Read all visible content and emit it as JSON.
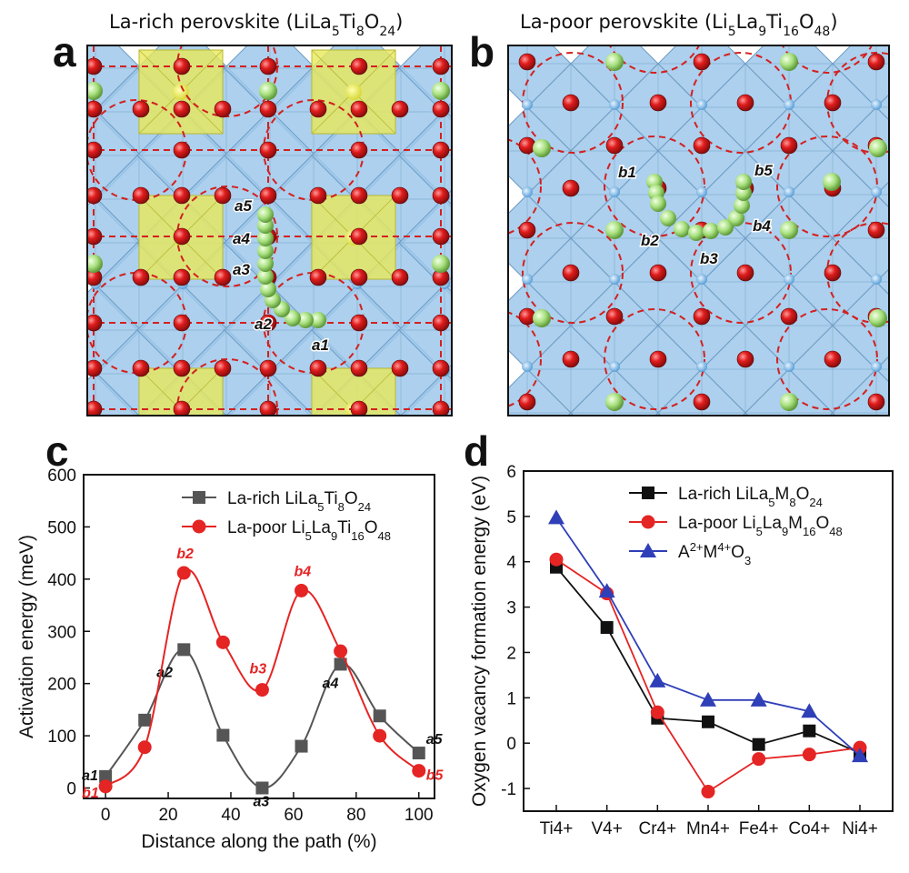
{
  "figure": {
    "panel_a": {
      "letter": "a",
      "title": "La-rich perovskite (LiLa",
      "formula": [
        {
          "t": "La-rich perovskite (LiLa",
          "sub": false
        },
        {
          "t": "5",
          "sub": true
        },
        {
          "t": "Ti",
          "sub": false
        },
        {
          "t": "8",
          "sub": true
        },
        {
          "t": "O",
          "sub": false
        },
        {
          "t": "24",
          "sub": true
        },
        {
          "t": ")",
          "sub": false
        }
      ],
      "site_labels": [
        "a1",
        "a2",
        "a3",
        "a4",
        "a5"
      ]
    },
    "panel_b": {
      "letter": "b",
      "formula": [
        {
          "t": "La-poor perovskite (Li",
          "sub": false
        },
        {
          "t": "5",
          "sub": true
        },
        {
          "t": "La",
          "sub": false
        },
        {
          "t": "9",
          "sub": true
        },
        {
          "t": "Ti",
          "sub": false
        },
        {
          "t": "16",
          "sub": true
        },
        {
          "t": "O",
          "sub": false
        },
        {
          "t": "48",
          "sub": true
        },
        {
          "t": ")",
          "sub": false
        }
      ],
      "site_labels": [
        "b1",
        "b2",
        "b3",
        "b4",
        "b5"
      ]
    },
    "panel_c": {
      "letter": "c"
    },
    "panel_d": {
      "letter": "d"
    },
    "colors": {
      "octahedron": "#9ec8ea",
      "octahedron_edge": "#6f9cc4",
      "yellow_cage": "#e8e85a",
      "oxygen": "#e01c1c",
      "lithium": "#a8e07e",
      "dashed": "#d42020",
      "black_series": "#111111",
      "red_series": "#e52424",
      "blue_series": "#2f3fb8"
    }
  },
  "chart_data": [
    {
      "type": "line",
      "panel": "c",
      "xlabel": "Distance along the path (%)",
      "ylabel": "Activation energy (meV)",
      "xlim": [
        -7,
        105
      ],
      "ylim": [
        -20,
        600
      ],
      "xticks": [
        0,
        20,
        40,
        60,
        80,
        100
      ],
      "yticks": [
        0,
        100,
        200,
        300,
        400,
        500,
        600
      ],
      "legend_position": "top-right",
      "series": [
        {
          "name": "La-rich LiLa5Ti8O24",
          "legend": [
            {
              "t": "La-rich LiLa",
              "sub": false
            },
            {
              "t": "5",
              "sub": true
            },
            {
              "t": "Ti",
              "sub": false
            },
            {
              "t": "8",
              "sub": true
            },
            {
              "t": "O",
              "sub": false
            },
            {
              "t": "24",
              "sub": true
            }
          ],
          "color": "#555555",
          "marker": "square",
          "x": [
            0,
            12.5,
            25,
            37.5,
            50,
            62.5,
            75,
            87.5,
            100
          ],
          "y": [
            22,
            130,
            265,
            101,
            0,
            80,
            237,
            138,
            67
          ],
          "point_labels": [
            {
              "text": "a1",
              "x": 0,
              "y": 22
            },
            {
              "text": "a2",
              "x": 25,
              "y": 265
            },
            {
              "text": "a3",
              "x": 50,
              "y": 0
            },
            {
              "text": "a4",
              "x": 75,
              "y": 237
            },
            {
              "text": "a5",
              "x": 100,
              "y": 67
            }
          ]
        },
        {
          "name": "La-poor Li5La9Ti16O48",
          "legend": [
            {
              "t": "La-poor Li",
              "sub": false
            },
            {
              "t": "5",
              "sub": true
            },
            {
              "t": "La",
              "sub": false
            },
            {
              "t": "9",
              "sub": true
            },
            {
              "t": "Ti",
              "sub": false
            },
            {
              "t": "16",
              "sub": true
            },
            {
              "t": "O",
              "sub": false
            },
            {
              "t": "48",
              "sub": true
            }
          ],
          "color": "#e52424",
          "marker": "circle",
          "x": [
            0,
            12.5,
            25,
            37.5,
            50,
            62.5,
            75,
            87.5,
            100
          ],
          "y": [
            3,
            78,
            412,
            279,
            188,
            378,
            262,
            100,
            33
          ],
          "point_labels": [
            {
              "text": "b1",
              "x": 0,
              "y": 3
            },
            {
              "text": "b2",
              "x": 25,
              "y": 412
            },
            {
              "text": "b3",
              "x": 50,
              "y": 188
            },
            {
              "text": "b4",
              "x": 62.5,
              "y": 378
            },
            {
              "text": "b5",
              "x": 100,
              "y": 33
            }
          ]
        }
      ]
    },
    {
      "type": "line",
      "panel": "d",
      "xlabel": "",
      "ylabel": "Oxygen vacancy formation energy (eV)",
      "categories": [
        "Ti4+",
        "V4+",
        "Cr4+",
        "Mn4+",
        "Fe4+",
        "Co4+",
        "Ni4+"
      ],
      "ylim": [
        -1.5,
        6
      ],
      "yticks": [
        -1,
        0,
        1,
        2,
        3,
        4,
        5,
        6
      ],
      "legend_position": "top-right",
      "series": [
        {
          "name": "La-rich LiLa5M8O24",
          "legend": [
            {
              "t": "La-rich LiLa",
              "sub": false
            },
            {
              "t": "5",
              "sub": true
            },
            {
              "t": "M",
              "sub": false
            },
            {
              "t": "8",
              "sub": true
            },
            {
              "t": "O",
              "sub": false
            },
            {
              "t": "24",
              "sub": true
            }
          ],
          "color": "#111111",
          "marker": "square",
          "values": [
            3.88,
            2.55,
            0.55,
            0.47,
            -0.03,
            0.27,
            -0.22
          ]
        },
        {
          "name": "La-poor Li5La9M16O48",
          "legend": [
            {
              "t": "La-poor Li",
              "sub": false
            },
            {
              "t": "5",
              "sub": true
            },
            {
              "t": "La",
              "sub": false
            },
            {
              "t": "9",
              "sub": true
            },
            {
              "t": "M",
              "sub": false
            },
            {
              "t": "16",
              "sub": true
            },
            {
              "t": "O",
              "sub": false
            },
            {
              "t": "48",
              "sub": true
            }
          ],
          "color": "#e52424",
          "marker": "circle",
          "values": [
            4.05,
            3.3,
            0.68,
            -1.07,
            -0.35,
            -0.25,
            -0.1
          ]
        },
        {
          "name": "A2+M4+O3",
          "legend": [
            {
              "t": "A",
              "sub": false
            },
            {
              "t": "2+",
              "sup": true
            },
            {
              "t": "M",
              "sub": false
            },
            {
              "t": "4+",
              "sup": true
            },
            {
              "t": "O",
              "sub": false
            },
            {
              "t": "3",
              "sub": true
            }
          ],
          "color": "#2f3fb8",
          "marker": "triangle",
          "values": [
            4.97,
            3.35,
            1.37,
            0.95,
            0.95,
            0.7,
            -0.28
          ]
        }
      ]
    }
  ]
}
